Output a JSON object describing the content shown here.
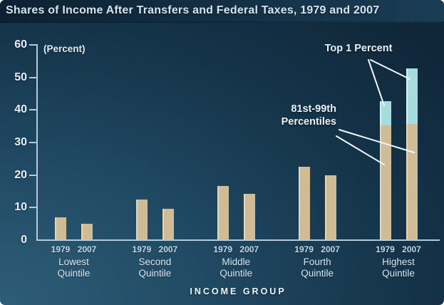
{
  "title": "Shares of Income After Transfers and Federal Taxes, 1979 and 2007",
  "chart_data": {
    "type": "bar",
    "subtype": "grouped-with-stacked-top-segment",
    "title": "Shares of Income After Transfers and Federal Taxes, 1979 and 2007",
    "percent_label": "(Percent)",
    "xlabel": "INCOME GROUP",
    "ylim": [
      0,
      60
    ],
    "yticks": [
      0,
      10,
      20,
      30,
      40,
      50,
      60
    ],
    "grid": false,
    "years": [
      "1979",
      "2007"
    ],
    "groups": [
      {
        "label": [
          "Lowest",
          "Quintile"
        ],
        "values": {
          "1979": {
            "total": 6.8
          },
          "2007": {
            "total": 4.9
          }
        }
      },
      {
        "label": [
          "Second",
          "Quintile"
        ],
        "values": {
          "1979": {
            "total": 12.2
          },
          "2007": {
            "total": 9.4
          }
        }
      },
      {
        "label": [
          "Middle",
          "Quintile"
        ],
        "values": {
          "1979": {
            "total": 16.5
          },
          "2007": {
            "total": 14.1
          }
        }
      },
      {
        "label": [
          "Fourth",
          "Quintile"
        ],
        "values": {
          "1979": {
            "total": 22.3
          },
          "2007": {
            "total": 19.8
          }
        }
      },
      {
        "label": [
          "Highest",
          "Quintile"
        ],
        "values": {
          "1979": {
            "p81_99": 35.1,
            "top1": 7.4
          },
          "2007": {
            "p81_99": 35.4,
            "top1": 17.1
          }
        }
      }
    ],
    "annotations": [
      {
        "lines": [
          "Top 1 Percent"
        ]
      },
      {
        "lines": [
          "81st-99th",
          "Percentiles"
        ]
      }
    ],
    "colors": {
      "bar": "#cfbc97",
      "top1_bar": "#a7dbe0",
      "axis": "#b7c9d6",
      "leader_line": "#f1f7fb",
      "background_light": "#2e5d78",
      "background_dark": "#102639",
      "title_text": "#d3e4ef"
    }
  }
}
